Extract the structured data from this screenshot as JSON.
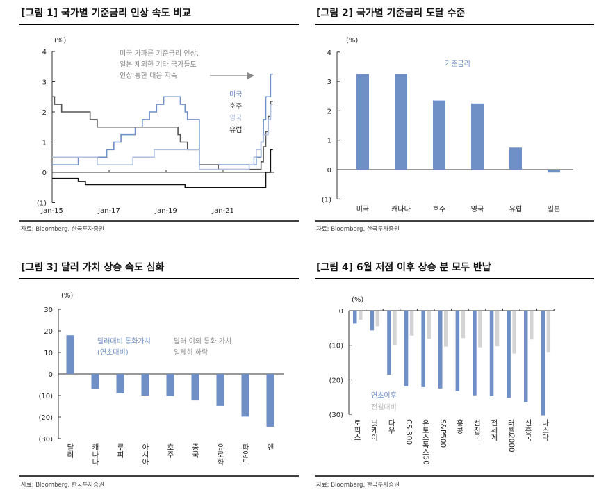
{
  "colors": {
    "blue": "#6f8fc7",
    "dark": "#555555",
    "light": "#aebfdf",
    "black": "#111111",
    "gray": "#d4d4d4",
    "note": "#888888"
  },
  "source": "자료: Bloomberg, 한국투자증권",
  "chart_data": [
    {
      "type": "line",
      "title": "[그림 1] 국가별 기준금리 인상 속도 비교",
      "ylabel": "(%)",
      "ylim": [
        -1,
        4
      ],
      "yticks": [
        "4",
        "3",
        "2",
        "1",
        "0",
        "(1)"
      ],
      "xticks": [
        "Jan-15",
        "Jan-17",
        "Jan-19",
        "Jan-21"
      ],
      "annotation": [
        "미국 가파른 기준금리 인상,",
        "일본 제외한 기타 국가들도",
        "인상 통한 대응 지속"
      ],
      "series": [
        {
          "name": "미국",
          "color": "#6f8fc7",
          "steps": [
            [
              "2015-01",
              0.25
            ],
            [
              "2015-12",
              0.5
            ],
            [
              "2016-12",
              0.75
            ],
            [
              "2017-03",
              1.0
            ],
            [
              "2017-06",
              1.25
            ],
            [
              "2017-12",
              1.5
            ],
            [
              "2018-03",
              1.75
            ],
            [
              "2018-06",
              2.0
            ],
            [
              "2018-09",
              2.25
            ],
            [
              "2018-12",
              2.5
            ],
            [
              "2019-07",
              2.25
            ],
            [
              "2019-09",
              2.0
            ],
            [
              "2019-10",
              1.75
            ],
            [
              "2020-03",
              1.25
            ],
            [
              "2020-03",
              0.25
            ],
            [
              "2022-03",
              0.5
            ],
            [
              "2022-05",
              1.0
            ],
            [
              "2022-06",
              1.75
            ],
            [
              "2022-07",
              2.5
            ],
            [
              "2022-09",
              3.25
            ],
            [
              "2022-10",
              3.25
            ]
          ]
        },
        {
          "name": "호주",
          "color": "#555555",
          "steps": [
            [
              "2015-01",
              2.5
            ],
            [
              "2015-02",
              2.25
            ],
            [
              "2015-05",
              2.0
            ],
            [
              "2016-05",
              1.75
            ],
            [
              "2016-08",
              1.5
            ],
            [
              "2019-06",
              1.25
            ],
            [
              "2019-07",
              1.0
            ],
            [
              "2019-10",
              0.75
            ],
            [
              "2020-03",
              0.25
            ],
            [
              "2020-11",
              0.1
            ],
            [
              "2022-05",
              0.35
            ],
            [
              "2022-06",
              0.85
            ],
            [
              "2022-07",
              1.35
            ],
            [
              "2022-08",
              1.85
            ],
            [
              "2022-09",
              2.35
            ],
            [
              "2022-10",
              2.35
            ]
          ]
        },
        {
          "name": "영국",
          "color": "#aebfdf",
          "steps": [
            [
              "2015-01",
              0.5
            ],
            [
              "2016-08",
              0.25
            ],
            [
              "2017-11",
              0.5
            ],
            [
              "2018-08",
              0.75
            ],
            [
              "2020-03",
              0.1
            ],
            [
              "2021-12",
              0.25
            ],
            [
              "2022-02",
              0.5
            ],
            [
              "2022-03",
              0.75
            ],
            [
              "2022-05",
              1.0
            ],
            [
              "2022-06",
              1.25
            ],
            [
              "2022-08",
              1.75
            ],
            [
              "2022-09",
              2.25
            ],
            [
              "2022-10",
              2.25
            ]
          ]
        },
        {
          "name": "유럽",
          "color": "#111111",
          "steps": [
            [
              "2015-01",
              -0.2
            ],
            [
              "2015-12",
              -0.3
            ],
            [
              "2016-03",
              -0.4
            ],
            [
              "2019-09",
              -0.5
            ],
            [
              "2022-07",
              0.0
            ],
            [
              "2022-09",
              0.75
            ],
            [
              "2022-10",
              0.75
            ]
          ]
        }
      ]
    },
    {
      "type": "bar",
      "title": "[그림 2] 국가별 기준금리 도달 수준",
      "ylabel": "(%)",
      "ylim": [
        -1,
        4
      ],
      "yticks": [
        "4",
        "3",
        "2",
        "1",
        "0",
        "(1)"
      ],
      "legend": "기준금리",
      "categories": [
        "미국",
        "캐나다",
        "호주",
        "영국",
        "유럽",
        "일본"
      ],
      "values": [
        3.25,
        3.25,
        2.35,
        2.25,
        0.75,
        -0.1
      ]
    },
    {
      "type": "bar",
      "title": "[그림 3] 달러 가치 상승 속도 심화",
      "ylabel": "(%)",
      "ylim": [
        -30,
        30
      ],
      "yticks": [
        "30",
        "20",
        "10",
        "0",
        "(10)",
        "(20)",
        "(30)"
      ],
      "annotation_blue": [
        "달러대비 통화가치",
        "(연초대비)"
      ],
      "annotation_gray": [
        "달러 이외 통화 가치",
        "일제히 하락"
      ],
      "categories": [
        "달러",
        "캐나다",
        "루피",
        "아시아",
        "호주",
        "중국",
        "유로화",
        "파운드",
        "엔"
      ],
      "values": [
        18,
        -7,
        -9,
        -10,
        -10.2,
        -12.3,
        -14.8,
        -19.8,
        -24.5
      ]
    },
    {
      "type": "bar",
      "title": "[그림 4] 6월 저점 이후 상승 분 모두 반납",
      "ylabel": "(%)",
      "ylim": [
        -30,
        0
      ],
      "yticks": [
        "0",
        "(10)",
        "(20)",
        "(30)"
      ],
      "categories": [
        "토픽스",
        "닛케이",
        "다우",
        "CSI300",
        "유토스톡스50",
        "S&P500",
        "홍콩",
        "선진국",
        "전세계",
        "러셀2000",
        "신흥국",
        "나스닥"
      ],
      "series": [
        {
          "name": "연초이후",
          "values": [
            -3.7,
            -5.7,
            -18.5,
            -21.9,
            -22.1,
            -22.5,
            -23.3,
            -24.5,
            -24.7,
            -25.2,
            -26.4,
            -30.3
          ]
        },
        {
          "name": "전월대비",
          "values": [
            -2.6,
            -4.5,
            -9.9,
            -7.2,
            -8.1,
            -10.4,
            -7.9,
            -10.6,
            -10.3,
            -12.4,
            -8.3,
            -12.1
          ]
        }
      ]
    }
  ]
}
